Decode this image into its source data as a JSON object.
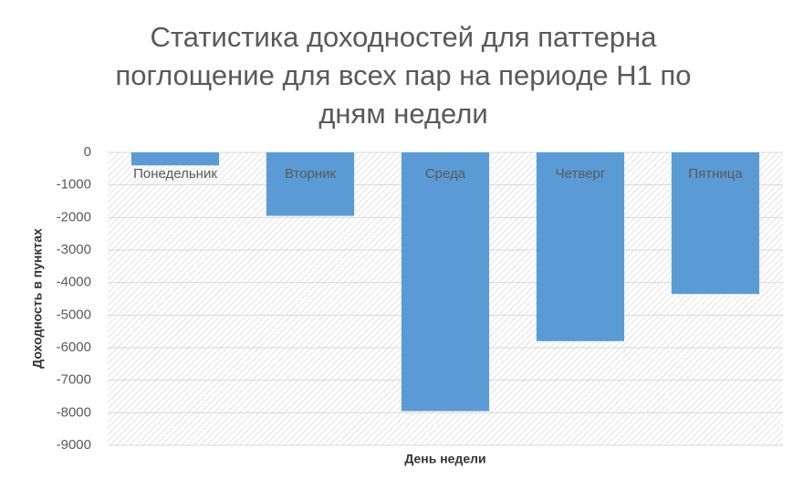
{
  "chart_data": {
    "type": "bar",
    "title": "Статистика доходностей для паттерна поглощение для всех пар на периоде H1 по дням недели",
    "x_label": "День недели",
    "y_label": "Доходность в пунктах",
    "categories": [
      "Понедельник",
      "Вторник",
      "Среда",
      "Четверг",
      "Пятница"
    ],
    "values": [
      -400,
      -1950,
      -7950,
      -5800,
      -4350
    ],
    "color": "#5b9bd5",
    "ylim": [
      -9000,
      0
    ],
    "yticks": [
      0,
      -1000,
      -2000,
      -3000,
      -4000,
      -5000,
      -6000,
      -7000,
      -8000,
      -9000
    ],
    "grid": true
  }
}
